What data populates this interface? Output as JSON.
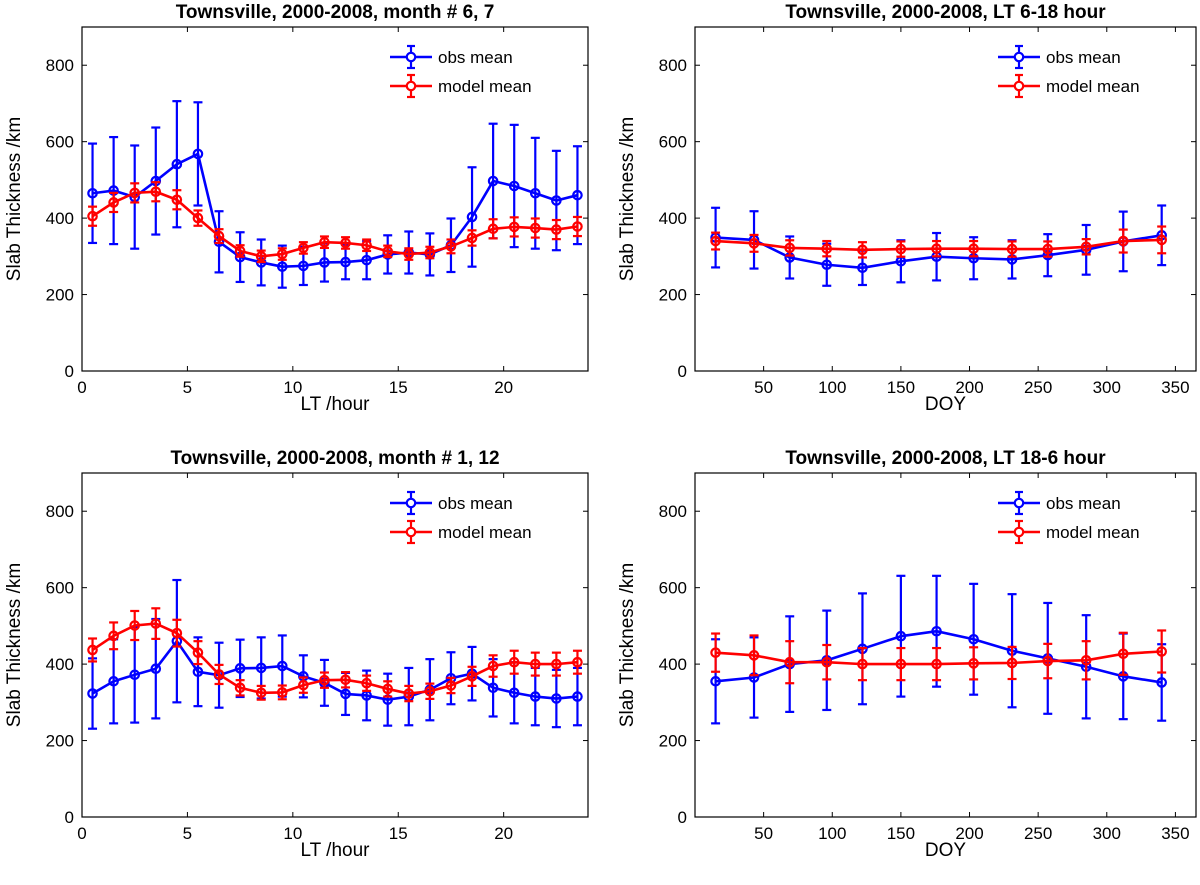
{
  "chart_data": [
    {
      "type": "line",
      "title": "Townsville, 2000-2008, month # 6, 7",
      "xlabel": "LT /hour",
      "ylabel": "Slab Thickness /km",
      "xlim": [
        0,
        24
      ],
      "ylim": [
        0,
        900
      ],
      "xticks": [
        0,
        5,
        10,
        15,
        20
      ],
      "yticks": [
        0,
        200,
        400,
        600,
        800
      ],
      "grid": false,
      "legend": "top-right",
      "x": [
        0.5,
        1.5,
        2.5,
        3.5,
        4.5,
        5.5,
        6.5,
        7.5,
        8.5,
        9.5,
        10.5,
        11.5,
        12.5,
        13.5,
        14.5,
        15.5,
        16.5,
        17.5,
        18.5,
        19.5,
        20.5,
        21.5,
        22.5,
        23.5
      ],
      "series": [
        {
          "name": "obs mean",
          "color": "#0000ff",
          "values": [
            465,
            472,
            455,
            497,
            541,
            568,
            338,
            298,
            284,
            273,
            275,
            284,
            285,
            290,
            305,
            310,
            305,
            329,
            403,
            497,
            484,
            465,
            446,
            460
          ],
          "errors": [
            130,
            140,
            135,
            140,
            165,
            135,
            80,
            65,
            60,
            55,
            50,
            50,
            45,
            50,
            50,
            55,
            55,
            70,
            130,
            150,
            160,
            145,
            130,
            128
          ]
        },
        {
          "name": "model mean",
          "color": "#ff0000",
          "values": [
            405,
            441,
            466,
            469,
            448,
            400,
            353,
            314,
            300,
            306,
            322,
            337,
            335,
            329,
            313,
            306,
            310,
            326,
            348,
            372,
            377,
            374,
            370,
            378
          ],
          "errors": [
            25,
            25,
            25,
            25,
            25,
            20,
            18,
            15,
            15,
            15,
            15,
            15,
            15,
            15,
            15,
            15,
            15,
            18,
            20,
            25,
            25,
            25,
            25,
            25
          ]
        }
      ]
    },
    {
      "type": "line",
      "title": "Townsville, 2000-2008, LT 6-18 hour",
      "xlabel": "DOY",
      "ylabel": "Slab Thickness /km",
      "xlim": [
        0,
        365
      ],
      "ylim": [
        0,
        900
      ],
      "xticks": [
        50,
        100,
        150,
        200,
        250,
        300,
        350
      ],
      "yticks": [
        0,
        200,
        400,
        600,
        800
      ],
      "grid": false,
      "legend": "top-right",
      "x": [
        15,
        43,
        69,
        96,
        122,
        150,
        176,
        203,
        231,
        257,
        285,
        312,
        340
      ],
      "series": [
        {
          "name": "obs mean",
          "color": "#0000ff",
          "values": [
            349,
            343,
            297,
            278,
            270,
            287,
            299,
            295,
            292,
            303,
            317,
            339,
            355
          ],
          "errors": [
            78,
            75,
            55,
            55,
            45,
            55,
            62,
            55,
            50,
            55,
            65,
            78,
            78
          ]
        },
        {
          "name": "model mean",
          "color": "#ff0000",
          "values": [
            340,
            334,
            322,
            320,
            317,
            319,
            320,
            320,
            319,
            319,
            325,
            340,
            343
          ],
          "errors": [
            22,
            22,
            20,
            20,
            20,
            20,
            20,
            20,
            20,
            20,
            20,
            30,
            35
          ]
        }
      ]
    },
    {
      "type": "line",
      "title": "Townsville, 2000-2008, month # 1, 12",
      "xlabel": "LT /hour",
      "ylabel": "Slab Thickness /km",
      "xlim": [
        0,
        24
      ],
      "ylim": [
        0,
        900
      ],
      "xticks": [
        0,
        5,
        10,
        15,
        20
      ],
      "yticks": [
        0,
        200,
        400,
        600,
        800
      ],
      "grid": false,
      "legend": "top-right",
      "x": [
        0.5,
        1.5,
        2.5,
        3.5,
        4.5,
        5.5,
        6.5,
        7.5,
        8.5,
        9.5,
        10.5,
        11.5,
        12.5,
        13.5,
        14.5,
        15.5,
        16.5,
        17.5,
        18.5,
        19.5,
        20.5,
        21.5,
        22.5,
        23.5
      ],
      "series": [
        {
          "name": "obs mean",
          "color": "#0000ff",
          "values": [
            323,
            355,
            372,
            388,
            460,
            380,
            371,
            389,
            390,
            395,
            368,
            351,
            322,
            318,
            307,
            315,
            333,
            363,
            375,
            338,
            325,
            315,
            310,
            315
          ],
          "errors": [
            92,
            110,
            125,
            130,
            160,
            90,
            85,
            75,
            80,
            80,
            55,
            60,
            55,
            65,
            68,
            75,
            80,
            68,
            70,
            75,
            80,
            75,
            75,
            75
          ]
        },
        {
          "name": "model mean",
          "color": "#ff0000",
          "values": [
            437,
            474,
            501,
            506,
            481,
            430,
            373,
            338,
            325,
            326,
            345,
            358,
            359,
            350,
            335,
            323,
            329,
            344,
            368,
            395,
            405,
            400,
            400,
            405
          ],
          "errors": [
            30,
            35,
            38,
            40,
            35,
            30,
            25,
            20,
            18,
            18,
            20,
            20,
            20,
            20,
            20,
            20,
            20,
            20,
            25,
            28,
            30,
            30,
            30,
            30
          ]
        }
      ]
    },
    {
      "type": "line",
      "title": "Townsville, 2000-2008, LT 18-6 hour",
      "xlabel": "DOY",
      "ylabel": "Slab Thickness /km",
      "xlim": [
        0,
        365
      ],
      "ylim": [
        0,
        900
      ],
      "xticks": [
        50,
        100,
        150,
        200,
        250,
        300,
        350
      ],
      "yticks": [
        0,
        200,
        400,
        600,
        800
      ],
      "grid": false,
      "legend": "top-right",
      "x": [
        15,
        43,
        69,
        96,
        122,
        150,
        176,
        203,
        231,
        257,
        285,
        312,
        340
      ],
      "series": [
        {
          "name": "obs mean",
          "color": "#0000ff",
          "values": [
            355,
            365,
            400,
            410,
            440,
            473,
            486,
            465,
            435,
            415,
            393,
            368,
            352
          ],
          "errors": [
            110,
            105,
            125,
            130,
            145,
            158,
            145,
            145,
            148,
            145,
            135,
            112,
            100
          ]
        },
        {
          "name": "model mean",
          "color": "#ff0000",
          "values": [
            430,
            423,
            405,
            405,
            400,
            400,
            400,
            402,
            403,
            408,
            410,
            427,
            433
          ],
          "errors": [
            50,
            52,
            55,
            45,
            42,
            42,
            42,
            42,
            42,
            45,
            50,
            55,
            55
          ]
        }
      ]
    }
  ]
}
